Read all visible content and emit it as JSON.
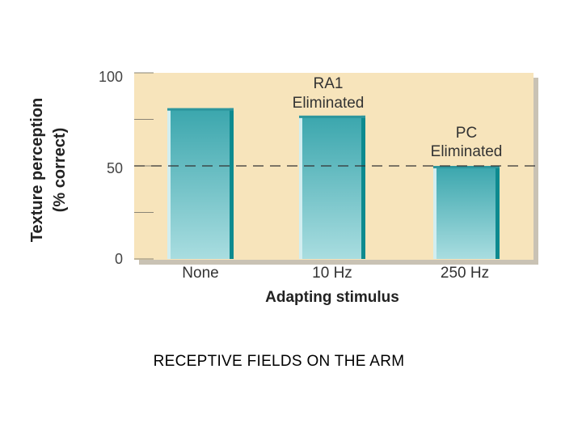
{
  "chart_data": {
    "type": "bar",
    "categories": [
      "None",
      "10 Hz",
      "250 Hz"
    ],
    "values": [
      81,
      77,
      50
    ],
    "xlabel": "Adapting stimulus",
    "ylabel_line1": "Texture perception",
    "ylabel_line2": "(% correct)",
    "ylim": [
      0,
      100
    ],
    "yticks": [
      "100",
      "50",
      "0"
    ],
    "reference_line": 50,
    "annotations": [
      {
        "category": "10 Hz",
        "lines": [
          "RA1",
          "Eliminated"
        ]
      },
      {
        "category": "250 Hz",
        "lines": [
          "PC",
          "Eliminated"
        ]
      }
    ],
    "colors": {
      "plot_background": "#f7e4bb",
      "bar_top": "#3aa6ad",
      "bar_bottom": "#a9dde0",
      "bar_edge": "#0d8a8f"
    }
  },
  "caption": "RECEPTIVE FIELDS ON THE ARM"
}
